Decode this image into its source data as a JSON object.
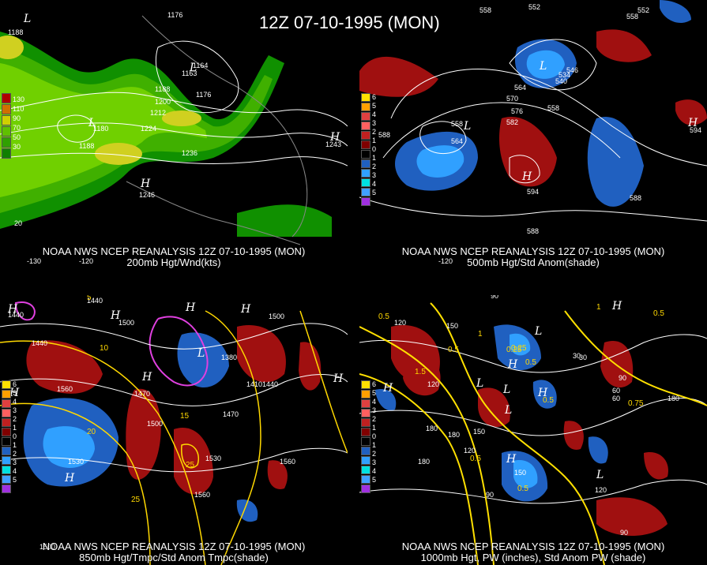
{
  "title": "12Z 07-10-1995 (MON)",
  "panels": {
    "p200": {
      "line1": "NOAA NWS NCEP REANALYSIS 12Z 07-10-1995 (MON)",
      "line2": "200mb Hgt/Wnd(kts)",
      "legend": [
        "130",
        "110",
        "90",
        "70",
        "50",
        "30"
      ],
      "legend_colors": [
        "#b00000",
        "#d07000",
        "#d0d000",
        "#60c000",
        "#30a000",
        "#108000"
      ],
      "labels": [
        "1188",
        "1176",
        "1164",
        "1163",
        "1188",
        "1200",
        "1212",
        "1224",
        "1236",
        "1176",
        "1180",
        "1188",
        "1246",
        "1243",
        "20",
        "-130",
        "-120"
      ],
      "highs_lows": [
        "L",
        "L",
        "L",
        "H",
        "H"
      ]
    },
    "p500": {
      "line1": "NOAA NWS NCEP REANALYSIS 12Z 07-10-1995 (MON)",
      "line2": "500mb Hgt/Std Anom(shade)",
      "legend": [
        "6",
        "5",
        "4",
        "3",
        "2",
        "1",
        "0",
        "1",
        "2",
        "3",
        "4",
        "5"
      ],
      "labels": [
        "558",
        "552",
        "558",
        "552",
        "546",
        "540",
        "534",
        "564",
        "570",
        "576",
        "582",
        "558",
        "564",
        "588",
        "594",
        "594",
        "588",
        "588",
        "588",
        "-120"
      ],
      "highs_lows": [
        "L",
        "L",
        "H",
        "H"
      ]
    },
    "p850": {
      "line1": "NOAA NWS NCEP REANALYSIS 12Z 07-10-1995 (MON)",
      "line2": "850mb Hgt/Tmpc/Std Anom Tmpc(shade)",
      "legend": [
        "6",
        "5",
        "4",
        "3",
        "2",
        "1",
        "0",
        "1",
        "2",
        "3",
        "4",
        "5"
      ],
      "labels": [
        "1440",
        "1440",
        "1440",
        "1500",
        "1560",
        "1470",
        "1500",
        "1530",
        "1560",
        "1560",
        "1530",
        "1410",
        "1440",
        "1470",
        "1500",
        "1380",
        "5",
        "10",
        "15",
        "20",
        "25",
        "25",
        "1500"
      ],
      "highs_lows": [
        "H",
        "H",
        "H",
        "H",
        "L",
        "H",
        "H",
        "H",
        "H"
      ]
    },
    "p1000": {
      "line1": "NOAA NWS NCEP REANALYSIS 12Z 07-10-1995 (MON)",
      "line2": "1000mb Hgt, PW (inches), Std Anom PW (shade)",
      "legend": [
        "6",
        "5",
        "4",
        "3",
        "2",
        "1",
        "0",
        "1",
        "2",
        "3",
        "4",
        "5"
      ],
      "labels": [
        "90",
        "120",
        "150",
        "180",
        "180",
        "120",
        "90",
        "60",
        "30",
        "0.5",
        "0.5",
        "1",
        "1.5",
        "0.25",
        "0.5",
        "1",
        "0.5",
        "180",
        "150",
        "120",
        "90",
        "60",
        "30",
        "0.5",
        "180",
        "150",
        "120",
        "0.5",
        "0.25",
        "0.5",
        "0.75",
        "90"
      ],
      "highs_lows": [
        "H",
        "L",
        "H",
        "L",
        "H",
        "L",
        "H",
        "L",
        "H",
        "L"
      ]
    }
  },
  "anom_legend_colors": [
    "#ffe000",
    "#ffa000",
    "#e04040",
    "#ff6060",
    "#c02020",
    "#800000",
    "#000000",
    "#2060c0",
    "#30a0ff",
    "#00e0e0",
    "#40a0ff",
    "#a030e0"
  ]
}
